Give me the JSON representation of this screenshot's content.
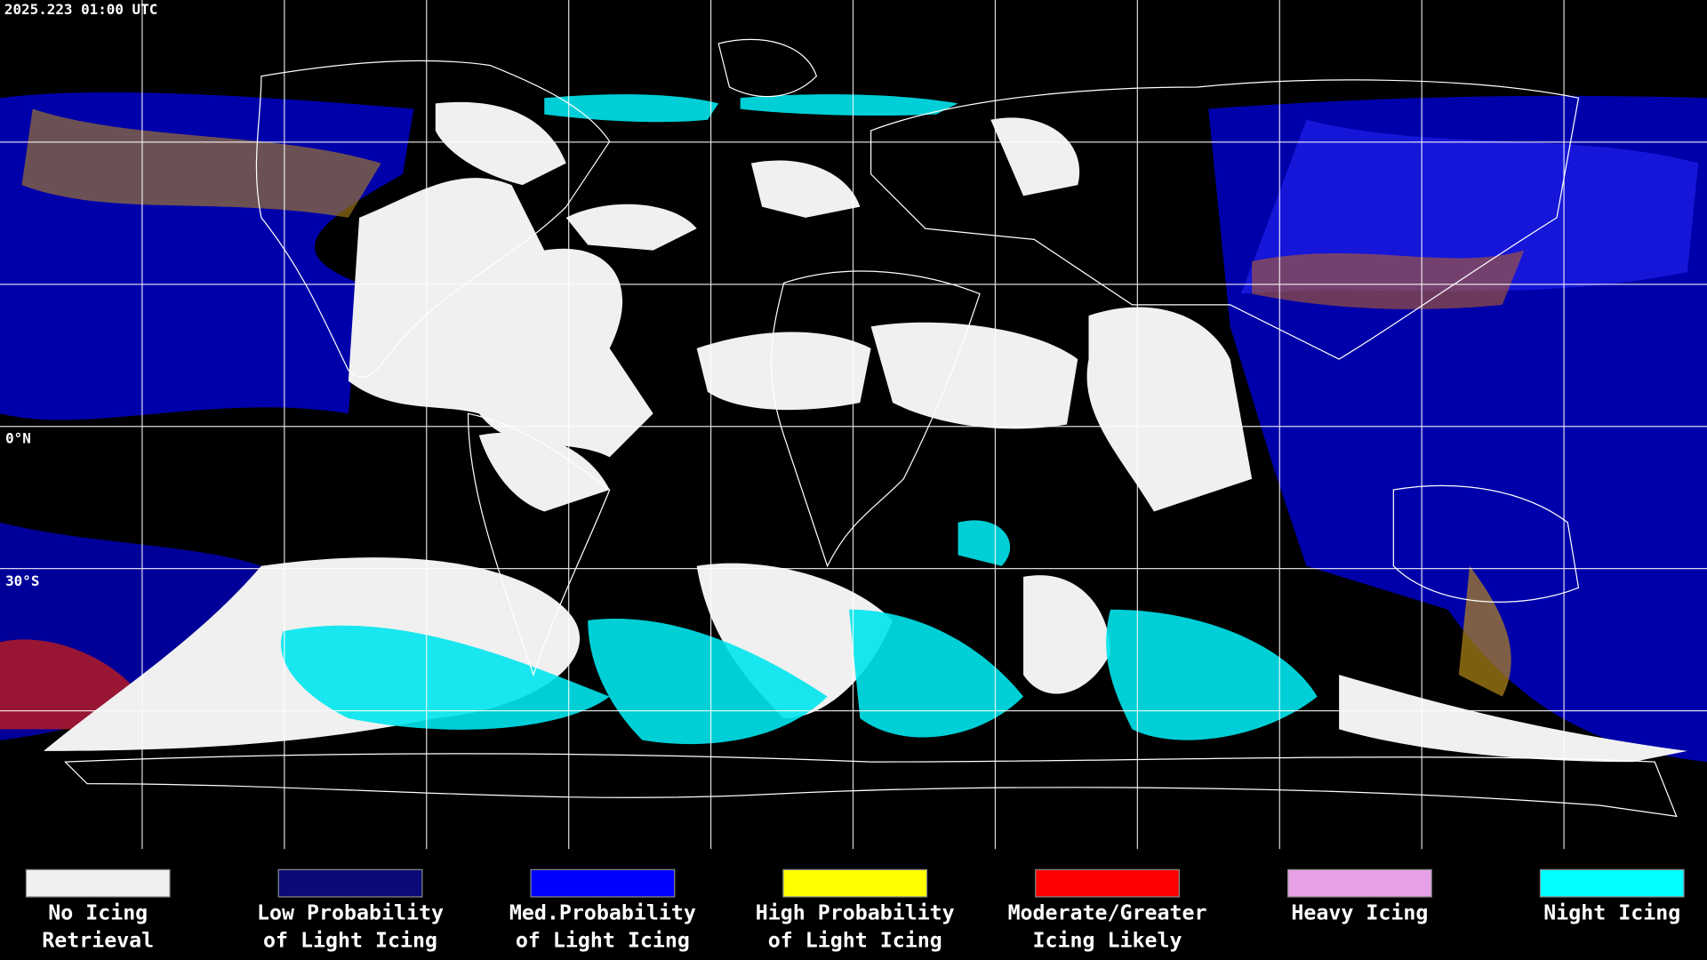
{
  "header": {
    "timestamp": "2025.223 01:00 UTC"
  },
  "map": {
    "latitude_labels": [
      "0°N",
      "30°S"
    ]
  },
  "legend": {
    "items": [
      {
        "color": "#f0f0f0",
        "lines": [
          "No Icing",
          "Retrieval"
        ]
      },
      {
        "color": "#0a0a78",
        "lines": [
          "Low Probability",
          "of Light Icing"
        ]
      },
      {
        "color": "#0000ff",
        "lines": [
          "Med.Probability",
          "of Light Icing"
        ]
      },
      {
        "color": "#ffff00",
        "lines": [
          "High Probability",
          "of Light Icing"
        ]
      },
      {
        "color": "#ff0000",
        "lines": [
          "Moderate/Greater",
          "Icing Likely"
        ]
      },
      {
        "color": "#e6a0e6",
        "lines": [
          "Heavy Icing"
        ]
      },
      {
        "color": "#00ffff",
        "lines": [
          "Night Icing"
        ]
      }
    ]
  }
}
